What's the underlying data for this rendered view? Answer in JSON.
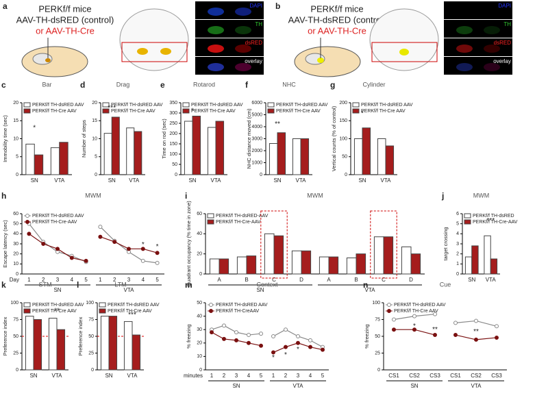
{
  "figure_top": [
    {
      "panel": "a",
      "mouse": "PERKf/f mice",
      "control": "AAV-TH-dsRED (control)",
      "cre": "or AAV-TH-Cre",
      "stains": [
        "DAPI",
        "TH",
        "dsRED",
        "overlay"
      ]
    },
    {
      "panel": "b",
      "mouse": "PERKf/f mice",
      "control": "AAV-TH-dsRED (control)",
      "cre": "or AAV-TH-Cre",
      "stains": [
        "DAPI",
        "TH",
        "dsRED",
        "overlay"
      ]
    }
  ],
  "chart_data": [
    {
      "panel": "c",
      "type": "bar",
      "title": "Bar",
      "y_label": "Immobility time (sec)",
      "categories": [
        "SN",
        "VTA"
      ],
      "ylim": [
        0,
        20
      ],
      "yticks": [
        0,
        5,
        10,
        15,
        20
      ],
      "annotations": [
        "*"
      ],
      "series": [
        {
          "name": "PERKf/f TH-dsRED AAV",
          "color": "#ffffff",
          "values": [
            8.5,
            7.5
          ]
        },
        {
          "name": "PERKf/f TH-Cre AAV",
          "color": "#a51d1d",
          "values": [
            5.5,
            9
          ]
        }
      ]
    },
    {
      "panel": "d",
      "type": "bar",
      "title": "Drag",
      "y_label": "Number of steps",
      "categories": [
        "SN",
        "VTA"
      ],
      "ylim": [
        0,
        20
      ],
      "yticks": [
        0,
        5,
        10,
        15,
        20
      ],
      "annotations": [
        "***"
      ],
      "series": [
        {
          "name": "PERKf/f TH-dsRED AAV",
          "color": "#ffffff",
          "values": [
            11.5,
            13
          ]
        },
        {
          "name": "PERKf/f TH-Cre AAV",
          "color": "#a51d1d",
          "values": [
            16,
            12
          ]
        }
      ]
    },
    {
      "panel": "e",
      "type": "bar",
      "title": "Rotarod",
      "y_label": "Time on rod (sec)",
      "categories": [
        "SN",
        "VTA"
      ],
      "ylim": [
        0,
        350
      ],
      "yticks": [
        0,
        50,
        100,
        150,
        200,
        250,
        300,
        350
      ],
      "annotations": [
        "*"
      ],
      "series": [
        {
          "name": "PERKf/f TH-dsRED AAV",
          "color": "#ffffff",
          "values": [
            260,
            230
          ]
        },
        {
          "name": "PERKf/f TH-Cre AAV",
          "color": "#a51d1d",
          "values": [
            285,
            260
          ]
        }
      ]
    },
    {
      "panel": "f",
      "type": "bar",
      "title": "NHC",
      "y_label": "NHC distance moved (cm)",
      "categories": [
        "SN",
        "VTA"
      ],
      "ylim": [
        0,
        6000
      ],
      "yticks": [
        0,
        1000,
        2000,
        3000,
        4000,
        5000,
        6000
      ],
      "annotations": [
        "**"
      ],
      "series": [
        {
          "name": "PERKf/f TH-dsRED AAV",
          "color": "#ffffff",
          "values": [
            2600,
            3000
          ]
        },
        {
          "name": "PERKf/f TH-Cre AAV",
          "color": "#a51d1d",
          "values": [
            3500,
            3000
          ]
        }
      ]
    },
    {
      "panel": "g",
      "type": "bar",
      "title": "Cylinder",
      "y_label": "Vertical counts (% of control)",
      "categories": [
        "SN",
        "VTA"
      ],
      "ylim": [
        0,
        200
      ],
      "yticks": [
        0,
        50,
        100,
        150,
        200
      ],
      "annotations": [
        "*"
      ],
      "series": [
        {
          "name": "PERKf/f TH-dsRED AAV",
          "color": "#ffffff",
          "values": [
            100,
            100
          ]
        },
        {
          "name": "PERKf/f TH-Cre AAV",
          "color": "#a51d1d",
          "values": [
            130,
            80
          ]
        }
      ]
    },
    {
      "panel": "h",
      "type": "line",
      "title": "MWM",
      "y_label": "Escape latency (sec)",
      "x_label": "Day",
      "categories": [
        "1",
        "2",
        "3",
        "4",
        "5",
        "1",
        "2",
        "3",
        "4",
        "5"
      ],
      "groups": [
        "SN",
        "VTA"
      ],
      "ylim": [
        0,
        60
      ],
      "yticks": [
        0,
        10,
        20,
        30,
        40,
        50,
        60
      ],
      "annotations": [
        "*",
        "*"
      ],
      "series": [
        {
          "name": "PERKf/f TH-dsRED AAV",
          "color": "#888888",
          "values": [
            50,
            32,
            22,
            18,
            12,
            47,
            33,
            22,
            13,
            11
          ]
        },
        {
          "name": "PERKf/f TH-Cre-AAV",
          "color": "#7a1010",
          "values": [
            40,
            30,
            25,
            16,
            13,
            37,
            32,
            25,
            25,
            21
          ]
        }
      ]
    },
    {
      "panel": "i",
      "type": "bar",
      "title": "MWM",
      "y_label": "Quadrant occupancy (% time in zone)",
      "categories": [
        "A",
        "B",
        "C",
        "D",
        "A",
        "B",
        "C",
        "D"
      ],
      "groups": [
        "SN",
        "VTA"
      ],
      "ylim": [
        0,
        60
      ],
      "yticks": [
        0,
        20,
        40,
        60
      ],
      "annotations": [],
      "series": [
        {
          "name": "PERKf/f TH-dsRED-AAV",
          "color": "#ffffff",
          "values": [
            15,
            17,
            40,
            23,
            17,
            16,
            37,
            27
          ]
        },
        {
          "name": "PERKf/f TH-Cre-AAV",
          "color": "#a51d1d",
          "values": [
            15,
            18,
            38,
            23,
            17,
            20,
            37,
            20
          ]
        }
      ]
    },
    {
      "panel": "j",
      "type": "bar",
      "title": "MWM",
      "y_label": "target crossing",
      "categories": [
        "SN",
        "VTA"
      ],
      "ylim": [
        0,
        6
      ],
      "yticks": [
        0,
        1,
        2,
        3,
        4,
        5,
        6
      ],
      "annotations": [
        "***"
      ],
      "series": [
        {
          "name": "PERKf/f TH-dsRED",
          "color": "#ffffff",
          "values": [
            1.7,
            3.8
          ]
        },
        {
          "name": "PERKf/f TH-Cre-AAV",
          "color": "#a51d1d",
          "values": [
            2.8,
            1.5
          ]
        }
      ]
    },
    {
      "panel": "k",
      "type": "bar",
      "title": "STM",
      "y_label": "Preference index",
      "categories": [
        "SN",
        "VTA"
      ],
      "ylim": [
        0,
        100
      ],
      "yticks": [
        0,
        25,
        50,
        75,
        100
      ],
      "reference_line": 50,
      "annotations": [
        "**"
      ],
      "series": [
        {
          "name": "PERKf/f TH-dsRED AAV",
          "color": "#ffffff",
          "values": [
            80,
            77
          ]
        },
        {
          "name": "PERKf/f TH-Cre AAV",
          "color": "#a51d1d",
          "values": [
            75,
            60
          ]
        }
      ]
    },
    {
      "panel": "l",
      "type": "bar",
      "title": "LTM",
      "y_label": "Preference index",
      "categories": [
        "SN",
        "VTA"
      ],
      "ylim": [
        0,
        100
      ],
      "yticks": [
        0,
        25,
        50,
        75,
        100
      ],
      "reference_line": 50,
      "annotations": [
        "***"
      ],
      "series": [
        {
          "name": "PERKf/f TH-dsRED AAV",
          "color": "#ffffff",
          "values": [
            80,
            72
          ]
        },
        {
          "name": "PERKf/f TH-Cre AAV",
          "color": "#a51d1d",
          "values": [
            80,
            52
          ]
        }
      ]
    },
    {
      "panel": "m",
      "type": "line",
      "title": "Context",
      "y_label": "% freezing",
      "x_label": "minutes",
      "categories": [
        "1",
        "2",
        "3",
        "4",
        "5",
        "1",
        "2",
        "3",
        "4",
        "5"
      ],
      "groups": [
        "SN",
        "VTA"
      ],
      "ylim": [
        0,
        50
      ],
      "yticks": [
        0,
        10,
        20,
        30,
        40,
        50
      ],
      "annotations": [
        "*",
        "*",
        "*"
      ],
      "series": [
        {
          "name": "PERKf/f TH-dsRED AAV",
          "color": "#888888",
          "values": [
            30,
            33,
            28,
            26,
            27,
            25,
            30,
            25,
            22,
            17
          ]
        },
        {
          "name": "PERKf/f TH-CreAAV",
          "color": "#7a1010",
          "values": [
            28,
            23,
            22,
            20,
            18,
            13,
            17,
            20,
            17,
            15
          ]
        }
      ]
    },
    {
      "panel": "n",
      "type": "line",
      "title": "Cue",
      "y_label": "% freezing",
      "categories": [
        "CS1",
        "CS2",
        "CS3",
        "CS1",
        "CS2",
        "CS3"
      ],
      "groups": [
        "SN",
        "VTA"
      ],
      "ylim": [
        0,
        100
      ],
      "yticks": [
        0,
        25,
        50,
        75,
        100
      ],
      "annotations": [
        "*",
        "**",
        "**"
      ],
      "series": [
        {
          "name": "PERKf/f TH-dsRED AAV",
          "color": "#888888",
          "values": [
            75,
            80,
            83,
            70,
            73,
            65
          ]
        },
        {
          "name": "PERKf/f TH-Cre AAV",
          "color": "#7a1010",
          "values": [
            60,
            60,
            52,
            52,
            45,
            48
          ]
        }
      ]
    }
  ]
}
